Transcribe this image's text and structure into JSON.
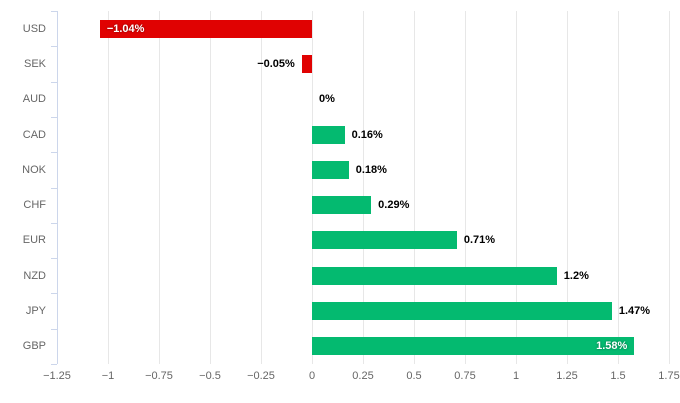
{
  "chart_data": {
    "type": "bar",
    "orientation": "horizontal",
    "title": "",
    "xlabel": "",
    "ylabel": "",
    "categories": [
      "USD",
      "SEK",
      "AUD",
      "CAD",
      "NOK",
      "CHF",
      "EUR",
      "NZD",
      "JPY",
      "GBP"
    ],
    "values": [
      -1.04,
      -0.05,
      0,
      0.16,
      0.18,
      0.29,
      0.71,
      1.2,
      1.47,
      1.58
    ],
    "value_labels": [
      "−1.04%",
      "−0.05%",
      "0%",
      "0.16%",
      "0.18%",
      "0.29%",
      "0.71%",
      "1.2%",
      "1.47%",
      "1.58%"
    ],
    "xlim": [
      -1.25,
      1.75
    ],
    "tick_step": 0.25,
    "tick_values": [
      -1.25,
      -1,
      -0.75,
      -0.5,
      -0.25,
      0,
      0.25,
      0.5,
      0.75,
      1,
      1.25,
      1.5,
      1.75
    ],
    "x_tick_labels": [
      "−1.25",
      "−1",
      "−0.75",
      "−0.5",
      "−0.25",
      "0",
      "0.25",
      "0.5",
      "0.75",
      "1",
      "1.25",
      "1.5",
      "1.75"
    ],
    "grid": true,
    "legend": "none",
    "colors": {
      "positive_bar": "#04ba70",
      "negative_bar": "#e00202",
      "gridline": "#e7e7e7",
      "axis_line": "#ccd6eb",
      "tick_label": "#666666",
      "data_label": "#000000",
      "data_label_inside": "#ffffff",
      "background": "#ffffff"
    }
  }
}
